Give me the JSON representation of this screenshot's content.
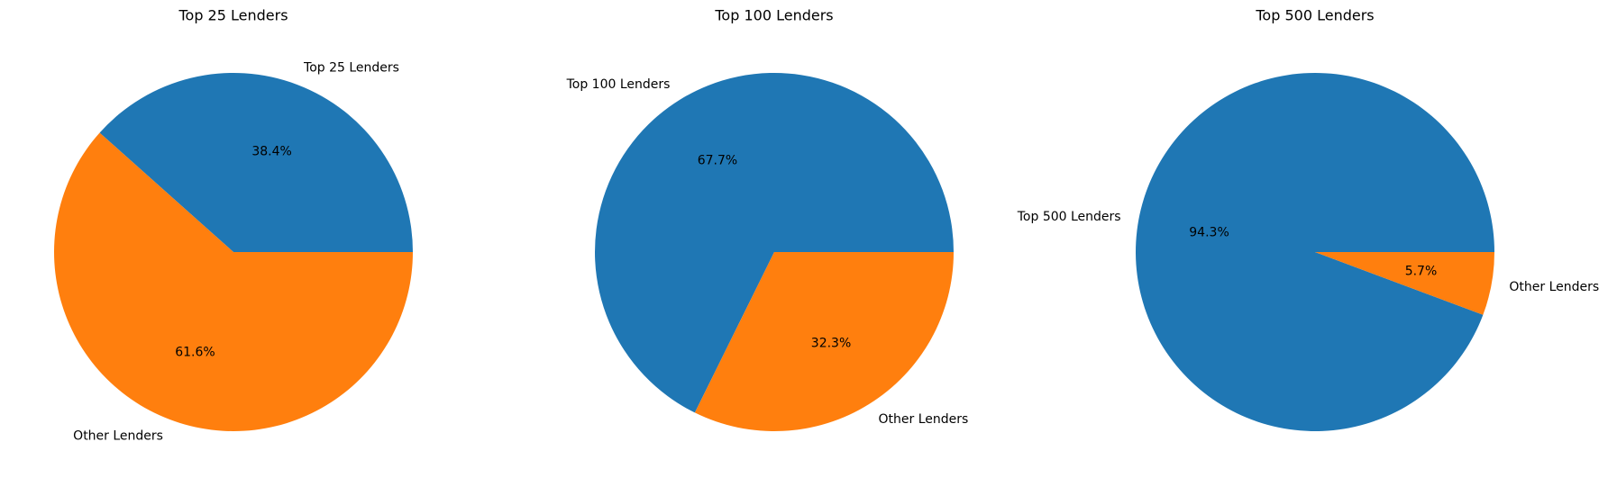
{
  "chart_data": [
    {
      "type": "pie",
      "title": "Top 25 Lenders",
      "categories": [
        "Top 25 Lenders",
        "Other Lenders"
      ],
      "values": [
        38.4,
        61.6
      ],
      "value_labels": [
        "38.4%",
        "61.6%"
      ],
      "colors": [
        "#1f77b4",
        "#ff7f0e"
      ]
    },
    {
      "type": "pie",
      "title": "Top 100 Lenders",
      "categories": [
        "Top 100 Lenders",
        "Other Lenders"
      ],
      "values": [
        67.7,
        32.3
      ],
      "value_labels": [
        "67.7%",
        "32.3%"
      ],
      "colors": [
        "#1f77b4",
        "#ff7f0e"
      ]
    },
    {
      "type": "pie",
      "title": "Top 500 Lenders",
      "categories": [
        "Top 500 Lenders",
        "Other Lenders"
      ],
      "values": [
        94.3,
        5.7
      ],
      "value_labels": [
        "94.3%",
        "5.7%"
      ],
      "colors": [
        "#1f77b4",
        "#ff7f0e"
      ]
    }
  ]
}
